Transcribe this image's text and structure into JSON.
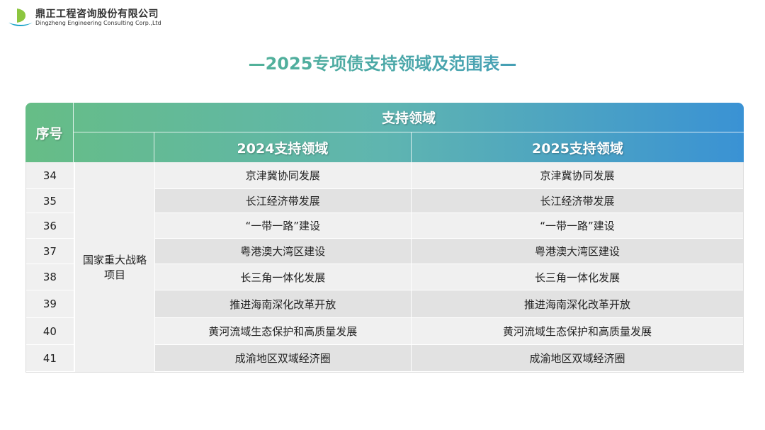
{
  "logo": {
    "name_cn": "鼎正工程咨询股份有限公司",
    "name_en": "Dingzheng Engineering Consulting Corp.,Ltd"
  },
  "title": "—2025专项债支持领域及范围表—",
  "table": {
    "header": {
      "index": "序号",
      "group": "支持领域",
      "col_2024": "2024支持领域",
      "col_2025": "2025支持领域"
    },
    "category": "国家重大战略项目",
    "rows": [
      {
        "no": "34",
        "y2024": "京津冀协同发展",
        "y2025": "京津冀协同发展"
      },
      {
        "no": "35",
        "y2024": "长江经济带发展",
        "y2025": "长江经济带发展"
      },
      {
        "no": "36",
        "y2024": "“一带一路”建设",
        "y2025": "“一带一路”建设"
      },
      {
        "no": "37",
        "y2024": "粤港澳大湾区建设",
        "y2025": "粤港澳大湾区建设"
      },
      {
        "no": "38",
        "y2024": "长三角一体化发展",
        "y2025": "长三角一体化发展"
      },
      {
        "no": "39",
        "y2024": "推进海南深化改革开放",
        "y2025": "推进海南深化改革开放"
      },
      {
        "no": "40",
        "y2024": "黄河流域生态保护和高质量发展",
        "y2025": "黄河流域生态保护和高质量发展"
      },
      {
        "no": "41",
        "y2024": "成渝地区双域经济圈",
        "y2025": "成渝地区双域经济圈"
      }
    ]
  }
}
